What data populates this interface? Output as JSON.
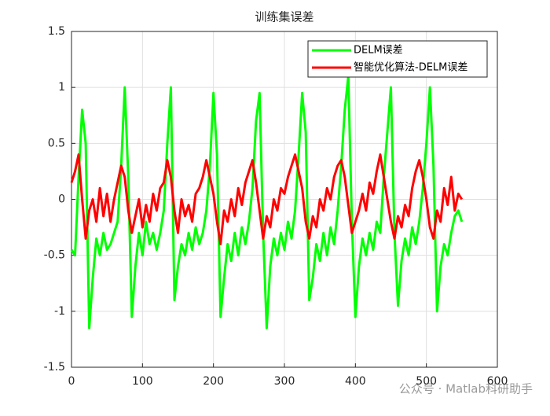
{
  "chart_data": {
    "type": "line",
    "title": "训练集误差",
    "x": [
      0,
      5,
      10,
      15,
      20,
      25,
      30,
      35,
      40,
      45,
      50,
      55,
      60,
      65,
      70,
      75,
      80,
      85,
      90,
      95,
      100,
      105,
      110,
      115,
      120,
      125,
      130,
      135,
      140,
      145,
      150,
      155,
      160,
      165,
      170,
      175,
      180,
      185,
      190,
      195,
      200,
      205,
      210,
      215,
      220,
      225,
      230,
      235,
      240,
      245,
      250,
      255,
      260,
      265,
      270,
      275,
      280,
      285,
      290,
      295,
      300,
      305,
      310,
      315,
      320,
      325,
      330,
      335,
      340,
      345,
      350,
      355,
      360,
      365,
      370,
      375,
      380,
      385,
      390,
      395,
      400,
      405,
      410,
      415,
      420,
      425,
      430,
      435,
      440,
      445,
      450,
      455,
      460,
      465,
      470,
      475,
      480,
      485,
      490,
      495,
      500,
      505,
      510,
      515,
      520,
      525,
      530,
      535,
      540,
      545,
      550
    ],
    "series": [
      {
        "name": "DELM误差",
        "color": "#00ff00",
        "values": [
          -0.45,
          -0.5,
          0.2,
          0.8,
          0.5,
          -1.15,
          -0.7,
          -0.35,
          -0.5,
          -0.3,
          -0.45,
          -0.4,
          -0.3,
          -0.2,
          0.3,
          1.0,
          0.2,
          -1.05,
          -0.6,
          -0.3,
          -0.5,
          -0.2,
          -0.4,
          -0.3,
          -0.45,
          -0.3,
          -0.1,
          0.5,
          1.0,
          -0.9,
          -0.6,
          -0.4,
          -0.5,
          -0.3,
          -0.45,
          -0.25,
          -0.4,
          -0.3,
          -0.1,
          0.3,
          0.95,
          0.4,
          -1.05,
          -0.7,
          -0.4,
          -0.55,
          -0.3,
          -0.5,
          -0.25,
          -0.4,
          -0.2,
          0.1,
          0.7,
          0.95,
          -0.3,
          -1.15,
          -0.6,
          -0.35,
          -0.5,
          -0.3,
          -0.45,
          -0.2,
          -0.35,
          -0.1,
          0.4,
          0.95,
          0.6,
          -0.9,
          -0.7,
          -0.4,
          -0.55,
          -0.3,
          -0.5,
          -0.25,
          -0.4,
          -0.1,
          0.3,
          0.8,
          1.1,
          -0.2,
          -1.05,
          -0.6,
          -0.35,
          -0.5,
          -0.3,
          -0.45,
          -0.2,
          -0.3,
          0.2,
          0.6,
          1.0,
          -0.3,
          -0.95,
          -0.55,
          -0.35,
          -0.5,
          -0.25,
          -0.4,
          -0.2,
          0.1,
          0.5,
          1.0,
          0.3,
          -1.0,
          -0.6,
          -0.4,
          -0.5,
          -0.3,
          -0.15,
          -0.1,
          -0.2
        ]
      },
      {
        "name": "智能优化算法-DELM误差",
        "color": "#ff0000",
        "values": [
          0.15,
          0.25,
          0.4,
          0.0,
          -0.35,
          -0.1,
          0.0,
          -0.2,
          0.1,
          -0.15,
          0.05,
          -0.2,
          0.0,
          0.15,
          0.3,
          0.2,
          -0.1,
          -0.3,
          -0.15,
          0.0,
          -0.25,
          -0.05,
          -0.2,
          0.05,
          -0.1,
          0.1,
          0.15,
          0.35,
          0.2,
          -0.1,
          -0.3,
          0.0,
          -0.15,
          -0.05,
          -0.2,
          0.05,
          0.1,
          0.2,
          0.35,
          0.2,
          0.05,
          -0.2,
          -0.4,
          -0.1,
          -0.2,
          0.0,
          -0.15,
          0.1,
          -0.05,
          0.15,
          0.25,
          0.35,
          0.15,
          -0.1,
          -0.35,
          -0.15,
          -0.25,
          0.0,
          -0.1,
          0.1,
          0.05,
          0.2,
          0.3,
          0.4,
          0.25,
          0.1,
          -0.2,
          -0.35,
          -0.15,
          -0.25,
          0.0,
          -0.1,
          0.1,
          0.0,
          0.2,
          0.3,
          0.35,
          0.2,
          -0.05,
          -0.3,
          -0.2,
          -0.1,
          0.05,
          -0.1,
          0.15,
          0.05,
          0.25,
          0.4,
          0.2,
          0.0,
          -0.2,
          -0.35,
          -0.15,
          -0.25,
          -0.05,
          -0.15,
          0.1,
          0.25,
          0.35,
          0.2,
          0.0,
          -0.25,
          -0.35,
          -0.1,
          -0.2,
          0.1,
          -0.05,
          0.2,
          -0.1,
          0.05,
          0.0
        ]
      }
    ],
    "xlim": [
      0,
      600
    ],
    "xticks": [
      0,
      100,
      200,
      300,
      400,
      500,
      600
    ],
    "ylim": [
      -1.5,
      1.5
    ],
    "yticks": [
      -1.5,
      -1,
      -0.5,
      0,
      0.5,
      1,
      1.5
    ],
    "grid": true,
    "legend": "top-right",
    "annotation": "公众号 · Matlab科研助手"
  }
}
